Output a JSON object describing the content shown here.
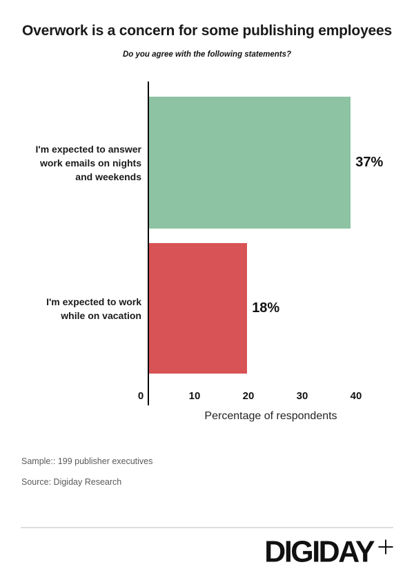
{
  "page": {
    "title": "Overwork is a concern for some publishing employees",
    "subtitle": "Do you agree with the following statements?"
  },
  "chart_data": {
    "type": "bar",
    "orientation": "horizontal",
    "title": "Overwork is a concern for some publishing employees",
    "subtitle": "Do you agree with the following statements?",
    "categories": [
      "I'm expected to answer\nwork emails on nights\nand weekends",
      "I'm expected to work\nwhile on vacation"
    ],
    "values": [
      37,
      18
    ],
    "value_labels": [
      "37%",
      "18%"
    ],
    "bar_colors": [
      "#8dc3a3",
      "#d85355"
    ],
    "xlabel": "Percentage of respondents",
    "ylabel": "",
    "xticks": [
      0,
      10,
      20,
      30,
      40
    ],
    "xlim": [
      0,
      45
    ],
    "grid": false,
    "legend": false,
    "baseline_color": "#000000"
  },
  "footnotes": {
    "sample": "Sample:: 199 publisher executives",
    "source": "Source: Digiday Research"
  },
  "footer": {
    "logo_text": "DIGIDAY",
    "logo_plus": "+",
    "divider_color": "#dedede"
  }
}
